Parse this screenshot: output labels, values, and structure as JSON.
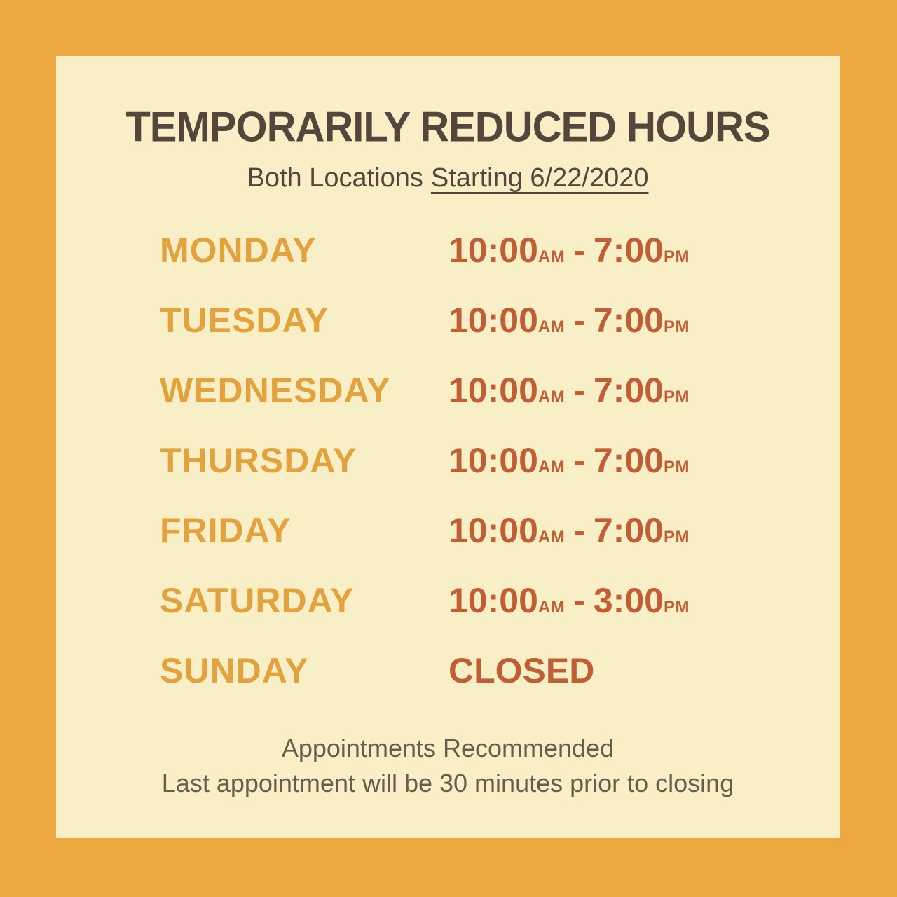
{
  "colors": {
    "background": "#ECA93F",
    "panel": "#F8EFC7",
    "title_text": "#55453B",
    "day_text": "#E2A33E",
    "time_text": "#C05F35",
    "footer_text": "#6B5B49"
  },
  "header": {
    "title": "TEMPORARILY REDUCED HOURS",
    "subtitle_prefix": "Both Locations",
    "subtitle_underlined": "Starting 6/22/2020"
  },
  "schedule": [
    {
      "day": "MONDAY",
      "open_time": "10:00",
      "open_meridiem": "AM",
      "separator": "-",
      "close_time": "7:00",
      "close_meridiem": "PM"
    },
    {
      "day": "TUESDAY",
      "open_time": "10:00",
      "open_meridiem": "AM",
      "separator": "-",
      "close_time": "7:00",
      "close_meridiem": "PM"
    },
    {
      "day": "WEDNESDAY",
      "open_time": "10:00",
      "open_meridiem": "AM",
      "separator": "-",
      "close_time": "7:00",
      "close_meridiem": "PM"
    },
    {
      "day": "THURSDAY",
      "open_time": "10:00",
      "open_meridiem": "AM",
      "separator": "-",
      "close_time": "7:00",
      "close_meridiem": "PM"
    },
    {
      "day": "FRIDAY",
      "open_time": "10:00",
      "open_meridiem": "AM",
      "separator": "-",
      "close_time": "7:00",
      "close_meridiem": "PM"
    },
    {
      "day": "SATURDAY",
      "open_time": "10:00",
      "open_meridiem": "AM",
      "separator": "-",
      "close_time": "3:00",
      "close_meridiem": "PM"
    },
    {
      "day": "SUNDAY",
      "status": "CLOSED"
    }
  ],
  "footer": {
    "line1": "Appointments Recommended",
    "line2": "Last appointment will be 30 minutes prior to closing"
  }
}
